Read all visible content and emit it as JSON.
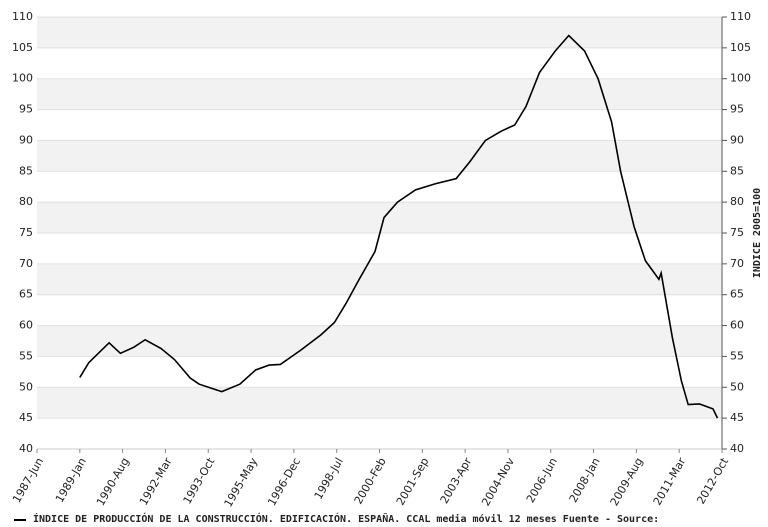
{
  "chart_data": {
    "type": "line",
    "y2label": "INDICE 2005=100",
    "grid": true,
    "bands": true,
    "xlim": [
      "1987-06",
      "2012-10"
    ],
    "xticks": [
      {
        "value": "1987-06",
        "label": "1987-Jun"
      },
      {
        "value": "1989-01",
        "label": "1989-Jan"
      },
      {
        "value": "1990-08",
        "label": "1990-Aug"
      },
      {
        "value": "1992-03",
        "label": "1992-Mar"
      },
      {
        "value": "1993-10",
        "label": "1993-Oct"
      },
      {
        "value": "1995-05",
        "label": "1995-May"
      },
      {
        "value": "1996-12",
        "label": "1996-Dec"
      },
      {
        "value": "1998-07",
        "label": "1998-Jul"
      },
      {
        "value": "2000-02",
        "label": "2000-Feb"
      },
      {
        "value": "2001-09",
        "label": "2001-Sep"
      },
      {
        "value": "2003-04",
        "label": "2003-Apr"
      },
      {
        "value": "2004-11",
        "label": "2004-Nov"
      },
      {
        "value": "2006-06",
        "label": "2006-Jun"
      },
      {
        "value": "2008-01",
        "label": "2008-Jan"
      },
      {
        "value": "2009-08",
        "label": "2009-Aug"
      },
      {
        "value": "2011-03",
        "label": "2011-Mar"
      },
      {
        "value": "2012-10",
        "label": "2012-Oct"
      }
    ],
    "ylim": [
      40,
      110
    ],
    "yticks": [
      40,
      45,
      50,
      55,
      60,
      65,
      70,
      75,
      80,
      85,
      90,
      95,
      100,
      105,
      110
    ],
    "y2lim": [
      40,
      110
    ],
    "y2ticks": [
      40,
      45,
      50,
      55,
      60,
      65,
      70,
      75,
      80,
      85,
      90,
      95,
      100,
      105,
      110
    ],
    "x": [
      "1989-01",
      "1989-05",
      "1990-02",
      "1990-07",
      "1991-01",
      "1991-06",
      "1992-01",
      "1992-07",
      "1993-02",
      "1993-06",
      "1994-04",
      "1994-12",
      "1995-07",
      "1996-01",
      "1996-06",
      "1997-03",
      "1997-12",
      "1998-06",
      "1998-11",
      "1999-05",
      "1999-12",
      "2000-04",
      "2000-10",
      "2001-06",
      "2002-03",
      "2002-12",
      "2003-06",
      "2004-01",
      "2004-08",
      "2005-02",
      "2005-07",
      "2006-01",
      "2006-08",
      "2007-02",
      "2007-09",
      "2008-03",
      "2008-09",
      "2009-01",
      "2009-07",
      "2009-12",
      "2010-03",
      "2010-06",
      "2010-07",
      "2010-12",
      "2011-04",
      "2011-07",
      "2011-12",
      "2012-06",
      "2012-08"
    ],
    "series": [
      {
        "name": "ÍNDICE DE PRODUCCIÓN DE LA CONSTRUCCIÓN. EDIFICACIÓN. ESPAÑA. CCAL media móvil 12 meses  Fuente - Source:",
        "color": "#000000",
        "values": [
          51.6,
          54,
          57.2,
          55.5,
          56.5,
          57.7,
          56.3,
          54.5,
          51.5,
          50.5,
          49.3,
          50.5,
          52.8,
          53.6,
          53.7,
          56,
          58.5,
          60.5,
          63.5,
          67.5,
          72,
          77.5,
          80,
          82,
          83,
          83.8,
          86.5,
          90,
          91.5,
          92.5,
          95.5,
          101,
          104.5,
          107,
          104.5,
          100,
          93,
          85,
          76,
          70.5,
          69,
          67.5,
          68.5,
          58,
          51,
          47.2,
          47.3,
          46.5,
          45
        ]
      }
    ]
  }
}
